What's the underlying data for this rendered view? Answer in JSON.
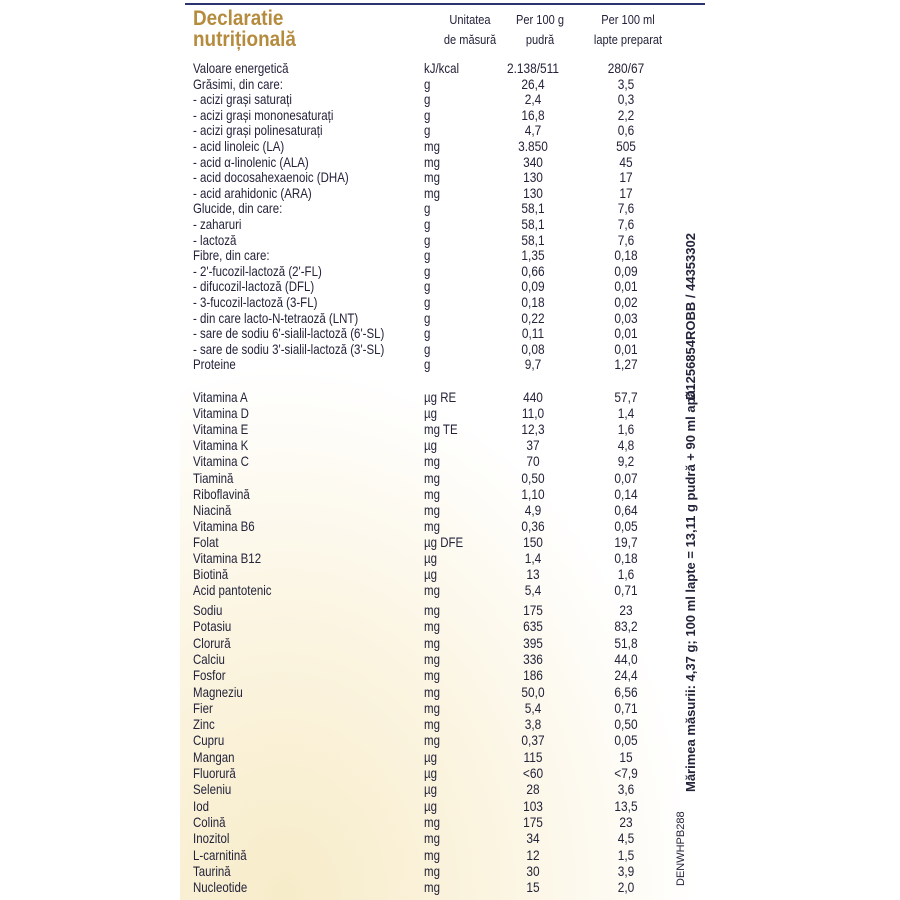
{
  "header": {
    "title": [
      "Declaratie",
      "nutrițională"
    ],
    "col_unit": [
      "Unitatea",
      "de măsură"
    ],
    "col_per100g": [
      "Per 100 g",
      "pudră"
    ],
    "col_per100ml": [
      "Per 100 ml",
      "lapte preparat"
    ]
  },
  "groups": [
    [
      [
        "Valoare energetică",
        "kJ/kcal",
        "2.138/511",
        "280/67"
      ],
      [
        "Grăsimi, din care:",
        "g",
        "26,4",
        "3,5"
      ],
      [
        "- acizi grași saturați",
        "g",
        "2,4",
        "0,3"
      ],
      [
        "- acizi grași mononesaturați",
        "g",
        "16,8",
        "2,2"
      ],
      [
        "- acizi grași polinesaturați",
        "g",
        "4,7",
        "0,6"
      ],
      [
        "- acid linoleic (LA)",
        "mg",
        "3.850",
        "505"
      ],
      [
        "- acid α-linolenic (ALA)",
        "mg",
        "340",
        "45"
      ],
      [
        "- acid docosahexaenoic (DHA)",
        "mg",
        "130",
        "17"
      ],
      [
        "- acid arahidonic (ARA)",
        "mg",
        "130",
        "17"
      ],
      [
        "Glucide, din care:",
        "g",
        "58,1",
        "7,6"
      ],
      [
        "- zaharuri",
        "g",
        "58,1",
        "7,6"
      ],
      [
        "- lactoză",
        "g",
        "58,1",
        "7,6"
      ],
      [
        "Fibre, din care:",
        "g",
        "1,35",
        "0,18"
      ],
      [
        "- 2'-fucozil-lactoză (2'-FL)",
        "g",
        "0,66",
        "0,09"
      ],
      [
        "- difucozil-lactoză (DFL)",
        "g",
        "0,09",
        "0,01"
      ],
      [
        "- 3-fucozil-lactoză (3-FL)",
        "g",
        "0,18",
        "0,02"
      ],
      [
        "- din care lacto-N-tetraoză (LNT)",
        "g",
        "0,22",
        "0,03"
      ],
      [
        "- sare de sodiu 6'-sialil-lactoză (6'-SL)",
        "g",
        "0,11",
        "0,01"
      ],
      [
        "- sare de sodiu 3'-sialil-lactoză (3'-SL)",
        "g",
        "0,08",
        "0,01"
      ],
      [
        "Proteine",
        "g",
        "9,7",
        "1,27"
      ]
    ],
    [
      [
        "Vitamina A",
        "µg RE",
        "440",
        "57,7"
      ],
      [
        "Vitamina D",
        "µg",
        "11,0",
        "1,4"
      ],
      [
        "Vitamina E",
        "mg TE",
        "12,3",
        "1,6"
      ],
      [
        "Vitamina K",
        "µg",
        "37",
        "4,8"
      ],
      [
        "Vitamina C",
        "mg",
        "70",
        "9,2"
      ],
      [
        "Tiamină",
        "mg",
        "0,50",
        "0,07"
      ],
      [
        "Riboflavină",
        "mg",
        "1,10",
        "0,14"
      ],
      [
        "Niacină",
        "mg",
        "4,9",
        "0,64"
      ],
      [
        "Vitamina B6",
        "mg",
        "0,36",
        "0,05"
      ],
      [
        "Folat",
        "µg DFE",
        "150",
        "19,7"
      ],
      [
        "Vitamina B12",
        "µg",
        "1,4",
        "0,18"
      ],
      [
        "Biotină",
        "µg",
        "13",
        "1,6"
      ],
      [
        "Acid pantotenic",
        "mg",
        "5,4",
        "0,71"
      ]
    ],
    [
      [
        "Sodiu",
        "mg",
        "175",
        "23"
      ],
      [
        "Potasiu",
        "mg",
        "635",
        "83,2"
      ],
      [
        "Clorură",
        "mg",
        "395",
        "51,8"
      ],
      [
        "Calciu",
        "mg",
        "336",
        "44,0"
      ],
      [
        "Fosfor",
        "mg",
        "186",
        "24,4"
      ],
      [
        "Magneziu",
        "mg",
        "50,0",
        "6,56"
      ],
      [
        "Fier",
        "mg",
        "5,4",
        "0,71"
      ],
      [
        "Zinc",
        "mg",
        "3,8",
        "0,50"
      ],
      [
        "Cupru",
        "mg",
        "0,37",
        "0,05"
      ],
      [
        "Mangan",
        "µg",
        "115",
        "15"
      ],
      [
        "Fluorură",
        "µg",
        "<60",
        "<7,9"
      ],
      [
        "Seleniu",
        "µg",
        "28",
        "3,6"
      ],
      [
        "Iod",
        "µg",
        "103",
        "13,5"
      ],
      [
        "Colină",
        "mg",
        "175",
        "23"
      ],
      [
        "Inozitol",
        "mg",
        "34",
        "4,5"
      ],
      [
        "L-carnitină",
        "mg",
        "12",
        "1,5"
      ],
      [
        "Taurină",
        "mg",
        "30",
        "3,9"
      ],
      [
        "Nucleotide",
        "mg",
        "15",
        "2,0"
      ]
    ]
  ],
  "side": {
    "code": "D1256854ROBB / 44353302",
    "measure": "Mărimea măsurii: 4,37 g; 100 ml lapte = 13,11 g pudră + 90 ml apă.",
    "ref": "DENWHPB288"
  }
}
